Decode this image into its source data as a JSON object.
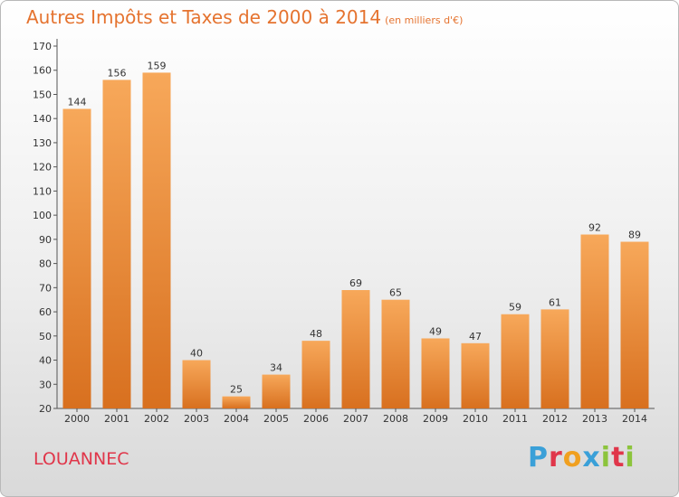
{
  "header": {
    "title": "Autres Impôts et Taxes de 2000 à 2014",
    "subtitle": "(en milliers d'€)"
  },
  "footer": {
    "town": "LOUANNEC",
    "logo_letters": [
      "P",
      "r",
      "o",
      "x",
      "i",
      "t",
      "i"
    ]
  },
  "colors": {
    "title": "#e5732f",
    "town": "#e0364a",
    "bar_top": "#f7a85a",
    "bar_bottom": "#d8701f",
    "logo": [
      "#3aa0d8",
      "#e0364a",
      "#f0a020",
      "#3aa0d8",
      "#8cc43c",
      "#e0364a",
      "#8cc43c"
    ]
  },
  "chart_data": {
    "type": "bar",
    "title": "Autres Impôts et Taxes de 2000 à 2014",
    "subtitle": "(en milliers d'€)",
    "xlabel": "",
    "ylabel": "",
    "categories": [
      "2000",
      "2001",
      "2002",
      "2003",
      "2004",
      "2005",
      "2006",
      "2007",
      "2008",
      "2009",
      "2010",
      "2011",
      "2012",
      "2013",
      "2014"
    ],
    "values": [
      144,
      156,
      159,
      40,
      25,
      34,
      48,
      69,
      65,
      49,
      47,
      59,
      61,
      92,
      89
    ],
    "ylim": [
      20,
      170
    ],
    "ytick_step": 10,
    "grid": false,
    "data_labels": true
  }
}
